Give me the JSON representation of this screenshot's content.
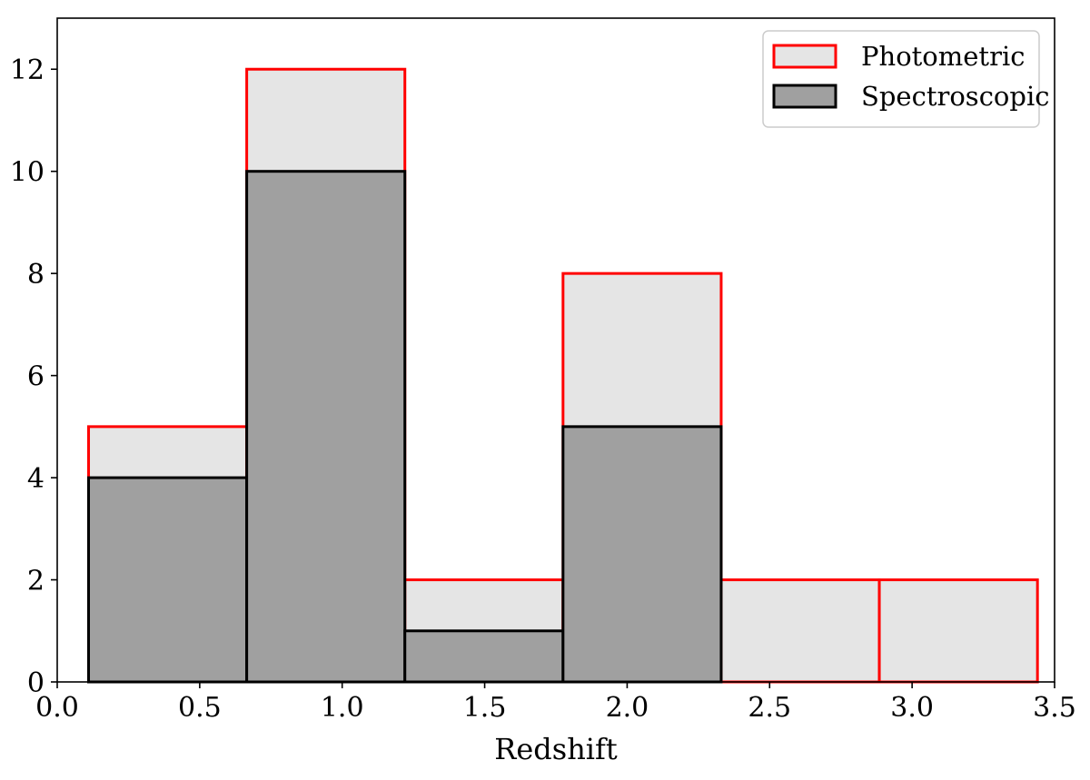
{
  "chart_data": {
    "type": "bar",
    "xlabel": "Redshift",
    "ylabel": "",
    "xlim": [
      0.0,
      3.5
    ],
    "ylim": [
      0,
      13
    ],
    "x_ticks": [
      "0.0",
      "0.5",
      "1.0",
      "1.5",
      "2.0",
      "2.5",
      "3.0",
      "3.5"
    ],
    "y_ticks": [
      "0",
      "2",
      "4",
      "6",
      "8",
      "10",
      "12"
    ],
    "bin_edges": [
      0.11,
      0.665,
      1.22,
      1.775,
      2.33,
      2.885,
      3.44
    ],
    "grid": false,
    "legend_position": "top-right",
    "series": [
      {
        "name": "Photometric",
        "values": [
          5,
          12,
          2,
          8,
          2,
          2
        ],
        "fill": "#e5e5e5",
        "edge": "#ff0000"
      },
      {
        "name": "Spectroscopic",
        "values": [
          4,
          10,
          1,
          5,
          0,
          0
        ],
        "fill": "#a0a0a0",
        "edge": "#000000"
      }
    ]
  }
}
